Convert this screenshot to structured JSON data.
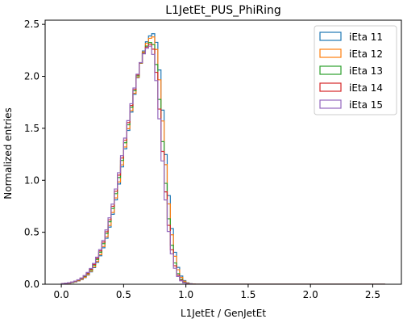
{
  "chart_data": {
    "type": "histogram-step",
    "title": "L1JetEt_PUS_PhiRing",
    "xlabel": "L1JetEt / GenJetEt",
    "ylabel": "Normalized entries",
    "xlim": [
      -0.13,
      2.73
    ],
    "ylim": [
      0,
      2.54
    ],
    "bin_width": 0.025,
    "x_range": [
      0,
      2.6
    ],
    "x_ticks": [
      0.0,
      0.5,
      1.0,
      1.5,
      2.0,
      2.5
    ],
    "x_tick_labels": [
      "0.0",
      "0.5",
      "1.0",
      "1.5",
      "2.0",
      "2.5"
    ],
    "y_ticks": [
      0.0,
      0.5,
      1.0,
      1.5,
      2.0,
      2.5
    ],
    "y_tick_labels": [
      "0.0",
      "0.5",
      "1.0",
      "1.5",
      "2.0",
      "2.5"
    ],
    "legend_position": "top-right",
    "grid": false,
    "series": [
      {
        "name": "iEta 11",
        "color": "#1f77b4",
        "peak_x": 0.74,
        "peak_y": 2.41,
        "sigma_left": 0.205,
        "sigma_right": 0.085
      },
      {
        "name": "iEta 12",
        "color": "#ff7f0e",
        "peak_x": 0.735,
        "peak_y": 2.38,
        "sigma_left": 0.205,
        "sigma_right": 0.085
      },
      {
        "name": "iEta 13",
        "color": "#2ca02c",
        "peak_x": 0.725,
        "peak_y": 2.33,
        "sigma_left": 0.205,
        "sigma_right": 0.085
      },
      {
        "name": "iEta 14",
        "color": "#d62728",
        "peak_x": 0.72,
        "peak_y": 2.31,
        "sigma_left": 0.205,
        "sigma_right": 0.085
      },
      {
        "name": "iEta 15",
        "color": "#9467bd",
        "peak_x": 0.715,
        "peak_y": 2.29,
        "sigma_left": 0.205,
        "sigma_right": 0.085
      }
    ]
  }
}
